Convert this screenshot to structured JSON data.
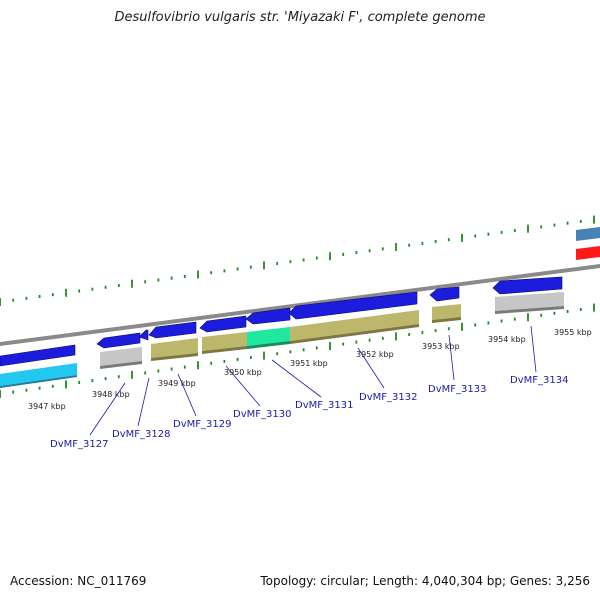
{
  "title": "Desulfovibrio vulgaris str. 'Miyazaki F', complete genome",
  "footer": {
    "accession": "Accession: NC_011769",
    "summary": "Topology: circular; Length: 4,040,304 bp; Genes: 3,256"
  },
  "colors": {
    "backbone": "#8a8a8a",
    "tick": "#1f8a1f",
    "cds_blue": "#1c1cdc",
    "cds_light_blue": "#22c8f0",
    "cds_steel": "#4682b4",
    "cds_red": "#ff1a1a",
    "gray_feature": "#c0c0c0",
    "khaki_feature": "#bdb76b",
    "highlight_green": "#20e8a0",
    "label": "#1a1aa8"
  },
  "scale_labels": [
    {
      "text": "3947 kbp",
      "kbp": 3947
    },
    {
      "text": "3948 kbp",
      "kbp": 3948
    },
    {
      "text": "3949 kbp",
      "kbp": 3949
    },
    {
      "text": "3950 kbp",
      "kbp": 3950
    },
    {
      "text": "3951 kbp",
      "kbp": 3951
    },
    {
      "text": "3952 kbp",
      "kbp": 3952
    },
    {
      "text": "3953 kbp",
      "kbp": 3953
    },
    {
      "text": "3954 kbp",
      "kbp": 3954
    },
    {
      "text": "3955 kbp",
      "kbp": 3955
    }
  ],
  "locus_labels": [
    "DvMF_3127",
    "DvMF_3128",
    "DvMF_3129",
    "DvMF_3130",
    "DvMF_3131",
    "DvMF_3132",
    "DvMF_3133",
    "DvMF_3134"
  ]
}
